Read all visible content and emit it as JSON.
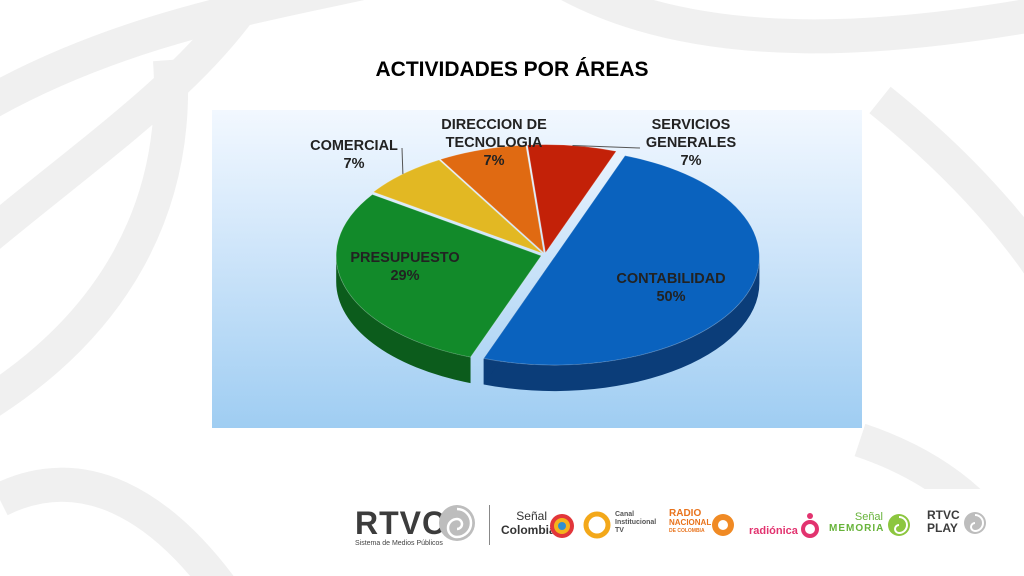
{
  "title": "ACTIVIDADES POR  ÁREAS",
  "chart_data": {
    "type": "pie",
    "title": "ACTIVIDADES POR  ÁREAS",
    "slices": [
      {
        "label_lines": [
          "CONTABILIDAD"
        ],
        "pct_label": "50%",
        "value": 50,
        "color": "#0a62be",
        "side": "#0b3d79"
      },
      {
        "label_lines": [
          "PRESUPUESTO"
        ],
        "pct_label": "29%",
        "value": 29,
        "color": "#128a2a",
        "side": "#0c5c1c"
      },
      {
        "label_lines": [
          "COMERCIAL"
        ],
        "pct_label": "7%",
        "value": 7,
        "color": "#e2b823",
        "side": "#a78512"
      },
      {
        "label_lines": [
          "DIRECCION DE",
          "TECNOLOGIA"
        ],
        "pct_label": "7%",
        "value": 7,
        "color": "#e06a12",
        "side": "#a64a0a"
      },
      {
        "label_lines": [
          "SERVICIOS",
          "GENERALES"
        ],
        "pct_label": "7%",
        "value": 7,
        "color": "#c32108",
        "side": "#8a1604"
      }
    ]
  },
  "footer": {
    "rtvc": "RTVC",
    "rtvc_sub": "Sistema de Medios Públicos",
    "senal": "Señal",
    "colombia": "Colombia",
    "canal": "Canal",
    "institucional": "Institucional",
    "tv": "TV",
    "radio": "RADIO",
    "nacional": "NACIONAL",
    "de_colombia": "DE COLOMBIA",
    "radionica": "radiónica",
    "senal2": "Señal",
    "memoria": "MEMORIA",
    "rtvc2": "RTVC",
    "play": "PLAY"
  }
}
